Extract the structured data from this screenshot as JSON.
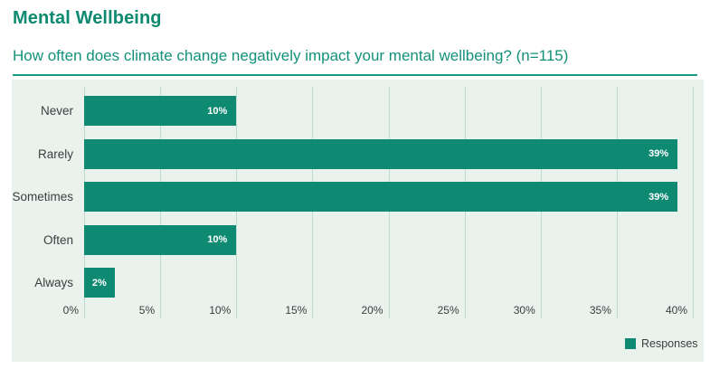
{
  "header": {
    "section_title": "Mental Wellbeing"
  },
  "chart_data": {
    "type": "bar",
    "orientation": "horizontal",
    "title": "How often does climate change negatively impact your mental wellbeing? (n=115)",
    "categories": [
      "Never",
      "Rarely",
      "Sometimes",
      "Often",
      "Always"
    ],
    "values": [
      10,
      39,
      39,
      10,
      2
    ],
    "value_labels": [
      "10%",
      "39%",
      "39%",
      "10%",
      "2%"
    ],
    "series_name": "Responses",
    "x_ticks": [
      "0%",
      "5%",
      "10%",
      "15%",
      "20%",
      "25%",
      "30%",
      "35%",
      "40%"
    ],
    "x_tick_values": [
      0,
      5,
      10,
      15,
      20,
      25,
      30,
      35,
      40
    ],
    "xlim": [
      0,
      40
    ],
    "grid": true,
    "legend_position": "bottom-right"
  },
  "colors": {
    "accent_teal": "#0e8a72",
    "title_teal": "#0e8a70",
    "subtitle_teal": "#12917a",
    "rule_teal": "#1b9b82",
    "panel_background": "#e9f2ed",
    "gridline": "#bcdcce",
    "text_dark": "#3d3d3d",
    "data_label": "#ffffff"
  }
}
